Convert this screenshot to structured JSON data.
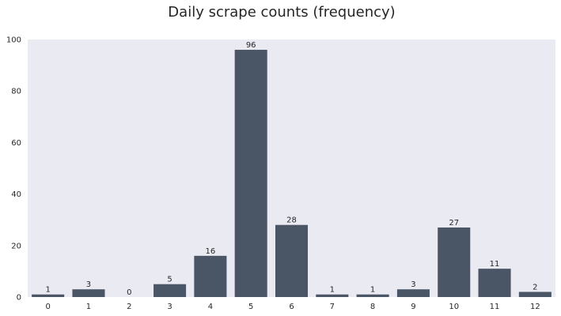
{
  "chart_data": {
    "type": "bar",
    "title": "Daily scrape counts (frequency)",
    "xlabel": "",
    "ylabel": "",
    "categories": [
      "0",
      "1",
      "2",
      "3",
      "4",
      "5",
      "6",
      "7",
      "8",
      "9",
      "10",
      "11",
      "12"
    ],
    "values": [
      1,
      3,
      0,
      5,
      16,
      96,
      28,
      1,
      1,
      3,
      27,
      11,
      2
    ],
    "ylim": [
      0,
      100
    ],
    "yticks": [
      0,
      20,
      40,
      60,
      80,
      100
    ],
    "grid": false,
    "bar_color": "#4a5565",
    "plot_background": "#eaeaf2",
    "data_labels": true
  }
}
